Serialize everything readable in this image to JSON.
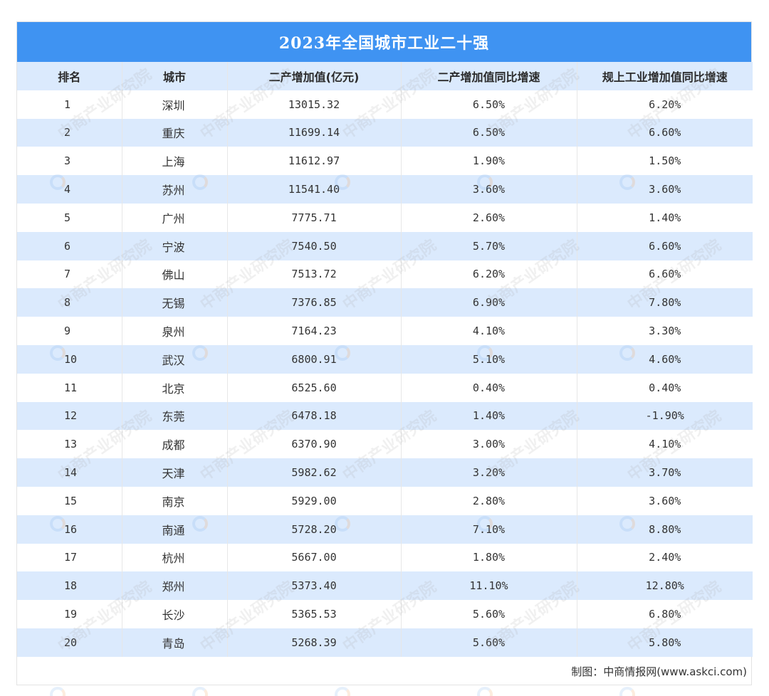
{
  "title": "2023年全国城市工业二十强",
  "columns": [
    "排名",
    "城市",
    "二产增加值(亿元)",
    "二产增加值同比增速",
    "规上工业增加值同比增速"
  ],
  "rows": [
    {
      "rank": "1",
      "city": "深圳",
      "value": "13015.32",
      "growth_secondary": "6.50%",
      "growth_industrial": "6.20%"
    },
    {
      "rank": "2",
      "city": "重庆",
      "value": "11699.14",
      "growth_secondary": "6.50%",
      "growth_industrial": "6.60%"
    },
    {
      "rank": "3",
      "city": "上海",
      "value": "11612.97",
      "growth_secondary": "1.90%",
      "growth_industrial": "1.50%"
    },
    {
      "rank": "4",
      "city": "苏州",
      "value": "11541.40",
      "growth_secondary": "3.60%",
      "growth_industrial": "3.60%"
    },
    {
      "rank": "5",
      "city": "广州",
      "value": "7775.71",
      "growth_secondary": "2.60%",
      "growth_industrial": "1.40%"
    },
    {
      "rank": "6",
      "city": "宁波",
      "value": "7540.50",
      "growth_secondary": "5.70%",
      "growth_industrial": "6.60%"
    },
    {
      "rank": "7",
      "city": "佛山",
      "value": "7513.72",
      "growth_secondary": "6.20%",
      "growth_industrial": "6.60%"
    },
    {
      "rank": "8",
      "city": "无锡",
      "value": "7376.85",
      "growth_secondary": "6.90%",
      "growth_industrial": "7.80%"
    },
    {
      "rank": "9",
      "city": "泉州",
      "value": "7164.23",
      "growth_secondary": "4.10%",
      "growth_industrial": "3.30%"
    },
    {
      "rank": "10",
      "city": "武汉",
      "value": "6800.91",
      "growth_secondary": "5.10%",
      "growth_industrial": "4.60%"
    },
    {
      "rank": "11",
      "city": "北京",
      "value": "6525.60",
      "growth_secondary": "0.40%",
      "growth_industrial": "0.40%"
    },
    {
      "rank": "12",
      "city": "东莞",
      "value": "6478.18",
      "growth_secondary": "1.40%",
      "growth_industrial": "-1.90%"
    },
    {
      "rank": "13",
      "city": "成都",
      "value": "6370.90",
      "growth_secondary": "3.00%",
      "growth_industrial": "4.10%"
    },
    {
      "rank": "14",
      "city": "天津",
      "value": "5982.62",
      "growth_secondary": "3.20%",
      "growth_industrial": "3.70%"
    },
    {
      "rank": "15",
      "city": "南京",
      "value": "5929.00",
      "growth_secondary": "2.80%",
      "growth_industrial": "3.60%"
    },
    {
      "rank": "16",
      "city": "南通",
      "value": "5728.20",
      "growth_secondary": "7.10%",
      "growth_industrial": "8.80%"
    },
    {
      "rank": "17",
      "city": "杭州",
      "value": "5667.00",
      "growth_secondary": "1.80%",
      "growth_industrial": "2.40%"
    },
    {
      "rank": "18",
      "city": "郑州",
      "value": "5373.40",
      "growth_secondary": "11.10%",
      "growth_industrial": "12.80%"
    },
    {
      "rank": "19",
      "city": "长沙",
      "value": "5365.53",
      "growth_secondary": "5.60%",
      "growth_industrial": "6.80%"
    },
    {
      "rank": "20",
      "city": "青岛",
      "value": "5268.39",
      "growth_secondary": "5.60%",
      "growth_industrial": "5.80%"
    }
  ],
  "source": "制图：中商情报网(www.askci.com)",
  "watermark_text": "中商产业研究院",
  "colors": {
    "title_bg": "#3f93f2",
    "stripe": "#dbeafd",
    "text": "#333333"
  }
}
